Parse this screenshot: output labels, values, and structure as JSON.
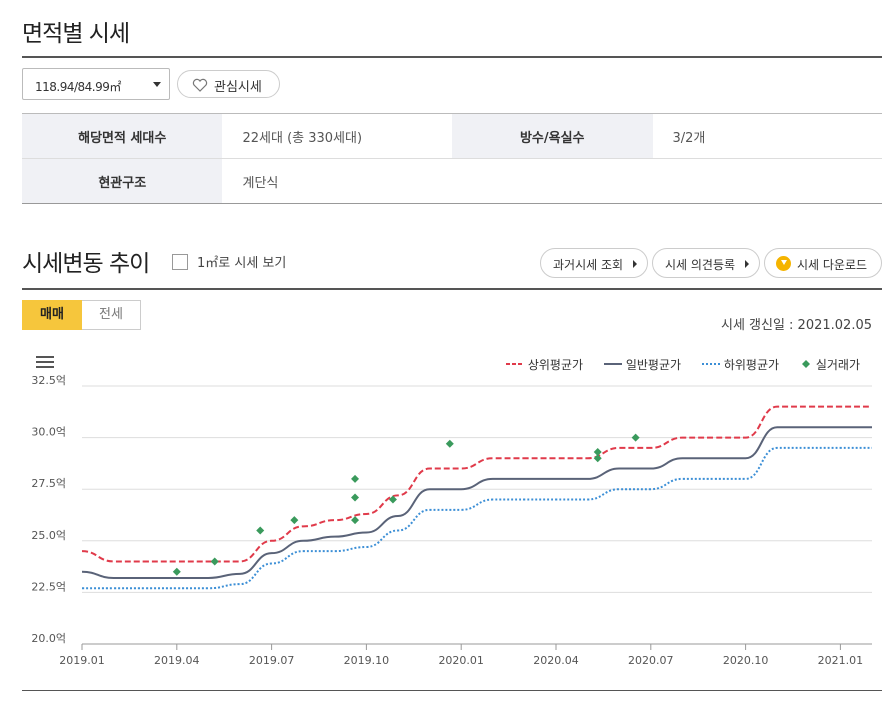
{
  "header": {
    "title": "면적별 시세"
  },
  "area_select": {
    "value": "118.94/84.99㎡"
  },
  "favorite_button": {
    "label": "관심시세"
  },
  "info_table": {
    "households_label": "해당면적 세대수",
    "households_value": "22세대 (총 330세대)",
    "rooms_label": "방수/욕실수",
    "rooms_value": "3/2개",
    "entrance_label": "현관구조",
    "entrance_value": "계단식"
  },
  "trend": {
    "title": "시세변동 추이",
    "pyeong_checkbox_label": "1㎡로 시세 보기",
    "past_price_button": "과거시세 조회",
    "opinion_button": "시세 의견등록",
    "download_button": "시세 다운로드",
    "tabs": [
      "매매",
      "전세"
    ],
    "active_tab": "매매",
    "update_text": "시세 갱신일 : 2021.02.05"
  },
  "colors": {
    "upper": "#e03a4a",
    "general": "#5a6378",
    "lower": "#3c8fd6",
    "actual": "#3a9a5c",
    "accent": "#f6c63c"
  },
  "chart_data": {
    "type": "line",
    "ylim": [
      20.0,
      32.5
    ],
    "y_ticks": [
      "20.0억",
      "22.5억",
      "25.0억",
      "27.5억",
      "30.0억",
      "32.5억"
    ],
    "y_tick_values": [
      20.0,
      22.5,
      25.0,
      27.5,
      30.0,
      32.5
    ],
    "x_ticks": [
      "2019.01",
      "2019.04",
      "2019.07",
      "2019.10",
      "2020.01",
      "2020.04",
      "2020.07",
      "2020.10",
      "2021.01"
    ],
    "x": [
      "2019.01",
      "2019.02",
      "2019.03",
      "2019.04",
      "2019.05",
      "2019.06",
      "2019.07",
      "2019.08",
      "2019.09",
      "2019.10",
      "2019.11",
      "2019.12",
      "2020.01",
      "2020.02",
      "2020.03",
      "2020.04",
      "2020.05",
      "2020.06",
      "2020.07",
      "2020.08",
      "2020.09",
      "2020.10",
      "2020.11",
      "2020.12",
      "2021.01",
      "2021.02"
    ],
    "series": [
      {
        "name": "상위평균가",
        "style": "dashed",
        "values": [
          24.5,
          24.0,
          24.0,
          24.0,
          24.0,
          24.0,
          25.0,
          25.7,
          26.0,
          26.3,
          27.2,
          28.5,
          28.5,
          29.0,
          29.0,
          29.0,
          29.0,
          29.5,
          29.5,
          30.0,
          30.0,
          30.0,
          31.5,
          31.5,
          31.5,
          31.5
        ]
      },
      {
        "name": "일반평균가",
        "style": "solid",
        "values": [
          23.5,
          23.2,
          23.2,
          23.2,
          23.2,
          23.4,
          24.4,
          25.0,
          25.2,
          25.4,
          26.2,
          27.5,
          27.5,
          28.0,
          28.0,
          28.0,
          28.0,
          28.5,
          28.5,
          29.0,
          29.0,
          29.0,
          30.5,
          30.5,
          30.5,
          30.5
        ]
      },
      {
        "name": "하위평균가",
        "style": "dotted",
        "values": [
          22.7,
          22.7,
          22.7,
          22.7,
          22.7,
          22.9,
          23.9,
          24.5,
          24.5,
          24.7,
          25.5,
          26.5,
          26.5,
          27.0,
          27.0,
          27.0,
          27.0,
          27.5,
          27.5,
          28.0,
          28.0,
          28.0,
          29.5,
          29.5,
          29.5,
          29.5
        ]
      }
    ],
    "actual_trades": {
      "name": "실거래가",
      "points": [
        {
          "x": 2019.25,
          "y": 23.5
        },
        {
          "x": 2019.35,
          "y": 24.0
        },
        {
          "x": 2019.47,
          "y": 25.5
        },
        {
          "x": 2019.56,
          "y": 26.0
        },
        {
          "x": 2019.72,
          "y": 28.0
        },
        {
          "x": 2019.72,
          "y": 27.1
        },
        {
          "x": 2019.72,
          "y": 26.0
        },
        {
          "x": 2019.82,
          "y": 27.0
        },
        {
          "x": 2019.97,
          "y": 29.7
        },
        {
          "x": 2020.36,
          "y": 29.3
        },
        {
          "x": 2020.36,
          "y": 29.0
        },
        {
          "x": 2020.46,
          "y": 30.0
        }
      ]
    },
    "legend_position": "top-right",
    "grid": true
  }
}
